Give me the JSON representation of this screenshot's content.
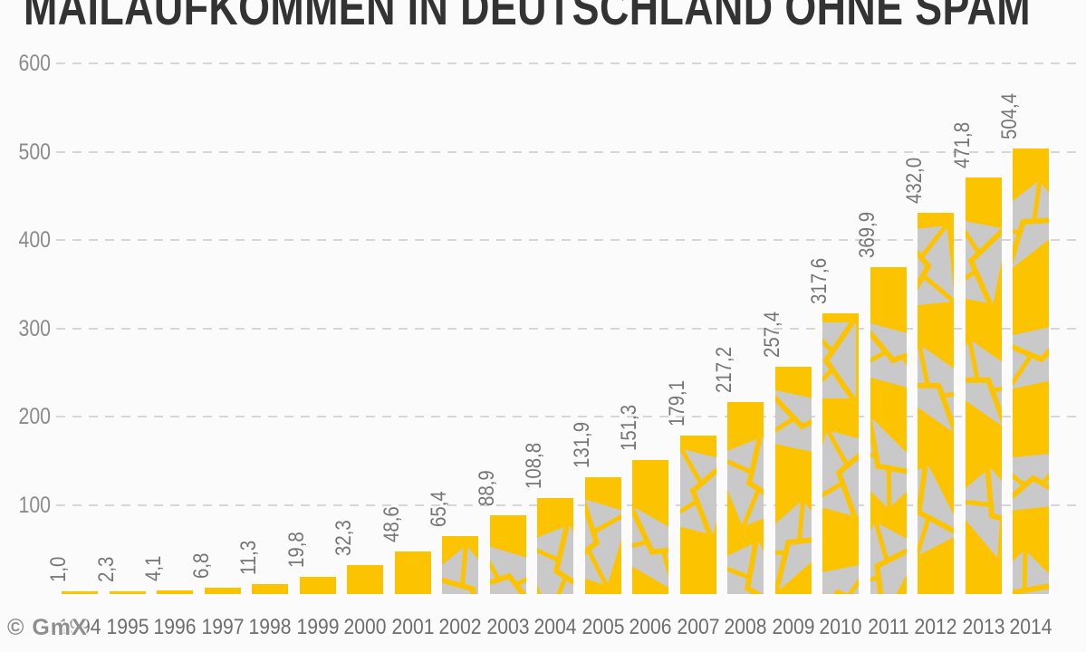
{
  "title": "MAILAUFKOMMEN IN DEUTSCHLAND OHNE SPAM",
  "watermark": "© GmX",
  "colors": {
    "bar": "#fcc400",
    "envelope_body": "#c9c9ca",
    "grid": "#d6d6d6",
    "title_text": "#333333",
    "axis_text": "#8b8b8b",
    "value_text": "#767676",
    "year_text": "#6e6e6e"
  },
  "chart_data": {
    "type": "bar",
    "title": "MAILAUFKOMMEN IN DEUTSCHLAND OHNE SPAM",
    "categories": [
      "1994",
      "1995",
      "1996",
      "1997",
      "1998",
      "1999",
      "2000",
      "2001",
      "2002",
      "2003",
      "2004",
      "2005",
      "2006",
      "2007",
      "2008",
      "2009",
      "2010",
      "2011",
      "2012",
      "2013",
      "2014"
    ],
    "values": [
      1.0,
      2.3,
      4.1,
      6.8,
      11.3,
      19.8,
      32.3,
      48.6,
      65.4,
      88.9,
      108.8,
      131.9,
      151.3,
      179.1,
      217.2,
      257.4,
      317.6,
      369.9,
      432.0,
      471.8,
      504.4
    ],
    "value_labels": [
      "1,0",
      "2,3",
      "4,1",
      "6,8",
      "11,3",
      "19,8",
      "32,3",
      "48,6",
      "65,4",
      "88,9",
      "108,8",
      "131,9",
      "151,3",
      "179,1",
      "217,2",
      "257,4",
      "317,6",
      "369,9",
      "432,0",
      "471,8",
      "504,4"
    ],
    "xlabel": "",
    "ylabel": "",
    "ylim": [
      0,
      600
    ],
    "yticks": [
      100,
      200,
      300,
      400,
      500,
      600
    ],
    "grid": "horizontal-dashed",
    "legend": "none",
    "bar_style": "yellow bars with scattered gray envelope icons"
  }
}
